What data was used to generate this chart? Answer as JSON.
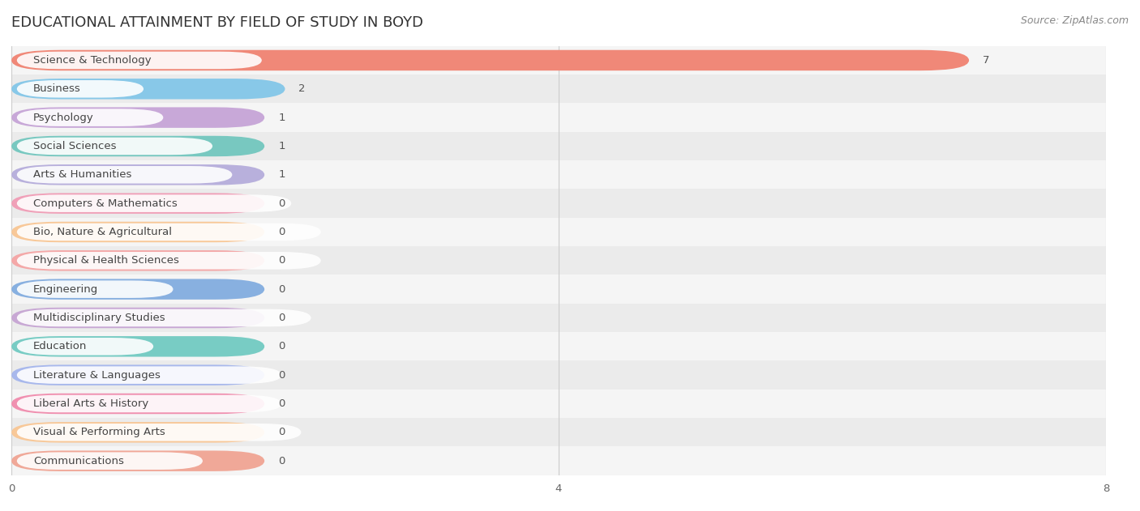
{
  "title": "EDUCATIONAL ATTAINMENT BY FIELD OF STUDY IN BOYD",
  "source": "Source: ZipAtlas.com",
  "categories": [
    "Science & Technology",
    "Business",
    "Psychology",
    "Social Sciences",
    "Arts & Humanities",
    "Computers & Mathematics",
    "Bio, Nature & Agricultural",
    "Physical & Health Sciences",
    "Engineering",
    "Multidisciplinary Studies",
    "Education",
    "Literature & Languages",
    "Liberal Arts & History",
    "Visual & Performing Arts",
    "Communications"
  ],
  "values": [
    7,
    2,
    1,
    1,
    1,
    0,
    0,
    0,
    0,
    0,
    0,
    0,
    0,
    0,
    0
  ],
  "bar_colors": [
    "#f08878",
    "#88C8E8",
    "#C8A8D8",
    "#78C8C0",
    "#B8B0DC",
    "#F0A0B8",
    "#F8C898",
    "#F4A8A8",
    "#88B0E0",
    "#C8A8D4",
    "#78CCC4",
    "#A8B8EC",
    "#F090B0",
    "#F8C898",
    "#F0A898"
  ],
  "xlim": [
    0,
    8
  ],
  "xticks": [
    0,
    4,
    8
  ],
  "row_bg_light": "#f5f5f5",
  "row_bg_dark": "#ebebeb",
  "title_fontsize": 13,
  "bar_height": 0.72,
  "label_fontsize": 9.5,
  "value_fontsize": 9.5,
  "min_bar_width": 1.85,
  "zero_bar_width": 1.85
}
